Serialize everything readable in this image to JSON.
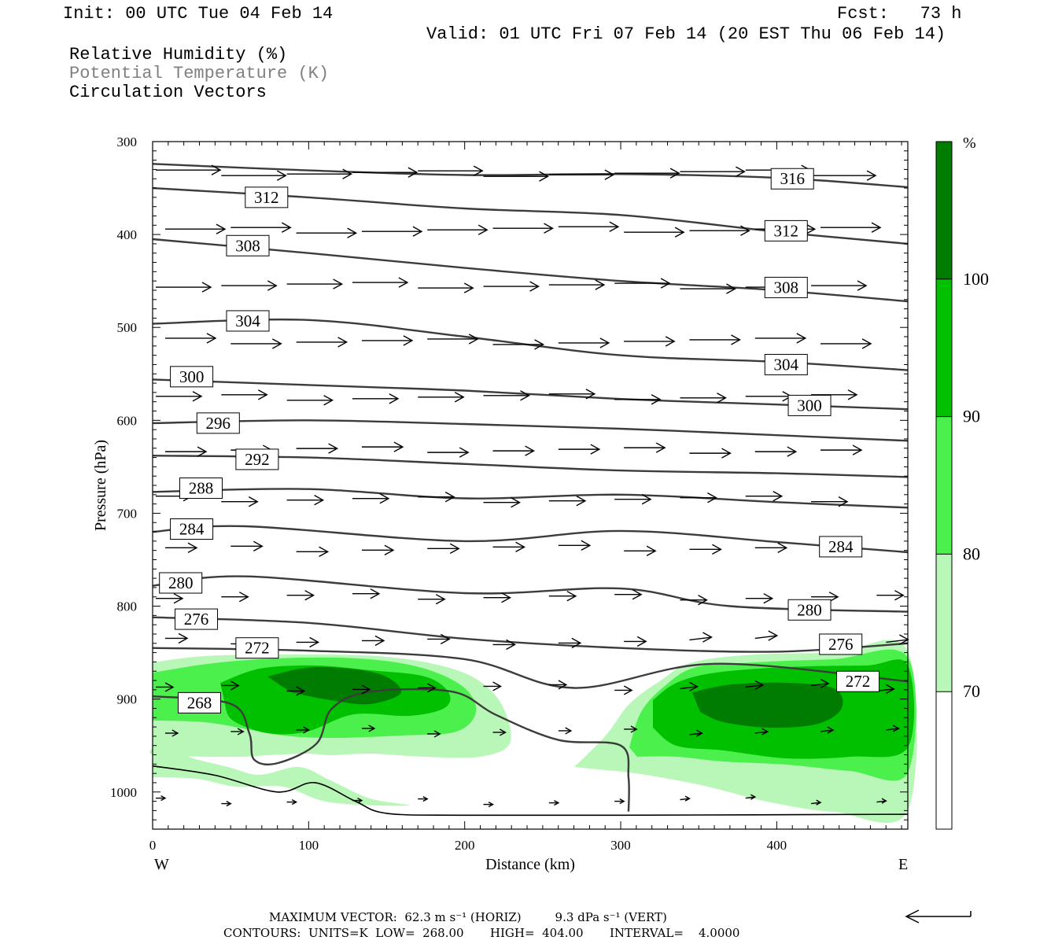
{
  "header": {
    "init": "Init: 00 UTC Tue 04 Feb 14",
    "fcst": "Fcst:   73 h",
    "valid": "Valid: 01 UTC Fri 07 Feb 14 (20 EST Thu 06 Feb 14)",
    "field_rh": "Relative Humidity (%)",
    "field_theta": "Potential Temperature (K)",
    "field_vec": "Circulation Vectors"
  },
  "footer": {
    "max_vector": "MAXIMUM VECTOR:  62.3 m s⁻¹ (HORIZ)         9.3 dPa s⁻¹ (VERT)",
    "contours": "CONTOURS:  UNITS=K  LOW=  268.00       HIGH=  404.00       INTERVAL=    4.0000"
  },
  "colors": {
    "rh_70": "#b8f7b8",
    "rh_80": "#4cf04c",
    "rh_90": "#00c000",
    "rh_100": "#007d00",
    "theta_line": "#3c3c3c",
    "text": "#000000"
  },
  "chart_data": {
    "type": "cross-section",
    "xlabel": "Distance (km)",
    "ylabel": "Pressure (hPa)",
    "xlim": [
      0,
      484
    ],
    "ylim": [
      1040,
      300
    ],
    "x_ticks": [
      0,
      100,
      200,
      300,
      400
    ],
    "y_ticks": [
      300,
      400,
      500,
      600,
      700,
      800,
      900,
      1000
    ],
    "x_end_labels": {
      "left": "W",
      "right": "E"
    },
    "colorbar": {
      "unit": "%",
      "levels": [
        70,
        80,
        90,
        100
      ],
      "colors": [
        "#ffffff",
        "#b8f7b8",
        "#4cf04c",
        "#00c000",
        "#007d00"
      ]
    },
    "theta_contours": [
      {
        "label": "316",
        "points": [
          [
            0,
            324
          ],
          [
            100,
            331
          ],
          [
            200,
            336
          ],
          [
            300,
            335
          ],
          [
            400,
            339
          ],
          [
            484,
            349
          ]
        ],
        "labels": [
          [
            410,
            340
          ]
        ]
      },
      {
        "label": "312",
        "points": [
          [
            0,
            350
          ],
          [
            100,
            360
          ],
          [
            200,
            372
          ],
          [
            300,
            379
          ],
          [
            400,
            397
          ],
          [
            484,
            410
          ]
        ],
        "labels": [
          [
            73,
            360
          ],
          [
            406,
            396
          ]
        ]
      },
      {
        "label": "308",
        "points": [
          [
            0,
            405
          ],
          [
            100,
            420
          ],
          [
            200,
            436
          ],
          [
            300,
            450
          ],
          [
            400,
            460
          ],
          [
            484,
            472
          ]
        ],
        "labels": [
          [
            61,
            412
          ],
          [
            406,
            457
          ]
        ]
      },
      {
        "label": "304",
        "points": [
          [
            0,
            496
          ],
          [
            100,
            492
          ],
          [
            200,
            510
          ],
          [
            300,
            530
          ],
          [
            400,
            537
          ],
          [
            484,
            546
          ]
        ],
        "labels": [
          [
            61,
            493
          ],
          [
            406,
            540
          ]
        ]
      },
      {
        "label": "300",
        "points": [
          [
            0,
            556
          ],
          [
            100,
            562
          ],
          [
            200,
            568
          ],
          [
            300,
            577
          ],
          [
            400,
            583
          ],
          [
            484,
            588
          ]
        ],
        "labels": [
          [
            25,
            553
          ],
          [
            421,
            584
          ]
        ]
      },
      {
        "label": "296",
        "points": [
          [
            0,
            603
          ],
          [
            100,
            600
          ],
          [
            200,
            604
          ],
          [
            300,
            609
          ],
          [
            400,
            616
          ],
          [
            484,
            622
          ]
        ],
        "labels": [
          [
            42,
            603
          ]
        ]
      },
      {
        "label": "292",
        "points": [
          [
            0,
            638
          ],
          [
            100,
            640
          ],
          [
            200,
            647
          ],
          [
            300,
            654
          ],
          [
            400,
            657
          ],
          [
            484,
            661
          ]
        ],
        "labels": [
          [
            67,
            642
          ]
        ]
      },
      {
        "label": "288",
        "points": [
          [
            0,
            677
          ],
          [
            100,
            674
          ],
          [
            200,
            684
          ],
          [
            300,
            680
          ],
          [
            400,
            688
          ],
          [
            484,
            694
          ]
        ],
        "labels": [
          [
            31,
            673
          ]
        ]
      },
      {
        "label": "284",
        "points": [
          [
            0,
            720
          ],
          [
            60,
            714
          ],
          [
            200,
            730
          ],
          [
            300,
            719
          ],
          [
            400,
            731
          ],
          [
            484,
            742
          ]
        ],
        "labels": [
          [
            25,
            717
          ],
          [
            441,
            736
          ]
        ]
      },
      {
        "label": "280",
        "points": [
          [
            0,
            778
          ],
          [
            60,
            768
          ],
          [
            200,
            786
          ],
          [
            300,
            781
          ],
          [
            370,
            800
          ],
          [
            484,
            806
          ]
        ],
        "labels": [
          [
            18,
            775
          ],
          [
            421,
            804
          ]
        ]
      },
      {
        "label": "276",
        "points": [
          [
            0,
            812
          ],
          [
            100,
            818
          ],
          [
            200,
            835
          ],
          [
            300,
            845
          ],
          [
            400,
            849
          ],
          [
            484,
            840
          ]
        ],
        "labels": [
          [
            28,
            814
          ],
          [
            441,
            841
          ]
        ]
      },
      {
        "label": "272",
        "points": [
          [
            0,
            845
          ],
          [
            100,
            848
          ],
          [
            200,
            857
          ],
          [
            270,
            888
          ],
          [
            360,
            862
          ],
          [
            484,
            881
          ]
        ],
        "labels": [
          [
            67,
            845
          ],
          [
            452,
            881
          ]
        ]
      },
      {
        "label": "268",
        "points": [
          [
            0,
            897
          ],
          [
            50,
            905
          ],
          [
            62,
            937
          ],
          [
            65,
            965
          ],
          [
            80,
            969
          ],
          [
            105,
            948
          ],
          [
            115,
            910
          ],
          [
            140,
            892
          ],
          [
            192,
            892
          ],
          [
            220,
            917
          ],
          [
            260,
            944
          ],
          [
            300,
            950
          ],
          [
            305,
            985
          ],
          [
            305,
            1021
          ]
        ],
        "labels": [
          [
            30,
            904
          ]
        ]
      }
    ],
    "vectors": {
      "columns_km": [
        0,
        42,
        84,
        126,
        168,
        210,
        252,
        294,
        336,
        378,
        420,
        462
      ],
      "levels_hpa": [
        334,
        395,
        455,
        515,
        575,
        632,
        685,
        738,
        790,
        838,
        888,
        935,
        1010
      ],
      "max_horiz": "62.3 m s⁻¹",
      "max_vert": "9.3 dPa s⁻¹"
    },
    "terrain": [
      [
        0,
        972
      ],
      [
        40,
        982
      ],
      [
        80,
        1000
      ],
      [
        104,
        990
      ],
      [
        130,
        1010
      ],
      [
        150,
        1023
      ],
      [
        200,
        1025
      ],
      [
        300,
        1025
      ],
      [
        484,
        1024
      ]
    ]
  }
}
